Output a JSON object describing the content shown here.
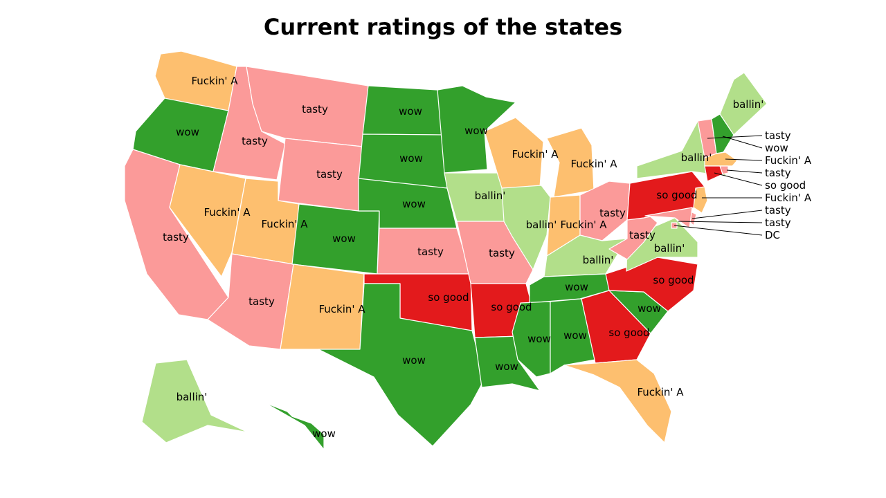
{
  "title": "Current ratings of the states",
  "rating_colors": {
    "so good": "#e31a1c",
    "wow": "#33a02c",
    "ballin'": "#b2df8a",
    "tasty": "#fb9a99",
    "Fuckin' A": "#fdbf6f"
  },
  "states": [
    {
      "id": "WA",
      "rating": "Fuckin' A"
    },
    {
      "id": "OR",
      "rating": "wow"
    },
    {
      "id": "CA",
      "rating": "tasty"
    },
    {
      "id": "ID",
      "rating": "tasty"
    },
    {
      "id": "NV",
      "rating": "Fuckin' A"
    },
    {
      "id": "MT",
      "rating": "tasty"
    },
    {
      "id": "WY",
      "rating": "tasty"
    },
    {
      "id": "UT",
      "rating": "Fuckin' A"
    },
    {
      "id": "AZ",
      "rating": "tasty"
    },
    {
      "id": "CO",
      "rating": "wow"
    },
    {
      "id": "NM",
      "rating": "Fuckin' A"
    },
    {
      "id": "ND",
      "rating": "wow"
    },
    {
      "id": "SD",
      "rating": "wow"
    },
    {
      "id": "NE",
      "rating": "wow"
    },
    {
      "id": "KS",
      "rating": "tasty"
    },
    {
      "id": "OK",
      "rating": "so good"
    },
    {
      "id": "TX",
      "rating": "wow"
    },
    {
      "id": "MN",
      "rating": "wow"
    },
    {
      "id": "IA",
      "rating": "ballin'"
    },
    {
      "id": "MO",
      "rating": "tasty"
    },
    {
      "id": "AR",
      "rating": "so good"
    },
    {
      "id": "LA",
      "rating": "wow"
    },
    {
      "id": "WI",
      "rating": "Fuckin' A"
    },
    {
      "id": "IL",
      "rating": "ballin'"
    },
    {
      "id": "MI",
      "rating": "Fuckin' A"
    },
    {
      "id": "IN",
      "rating": "Fuckin' A"
    },
    {
      "id": "OH",
      "rating": "tasty"
    },
    {
      "id": "KY",
      "rating": "ballin'"
    },
    {
      "id": "TN",
      "rating": "wow"
    },
    {
      "id": "MS",
      "rating": "wow"
    },
    {
      "id": "AL",
      "rating": "wow"
    },
    {
      "id": "GA",
      "rating": "so good"
    },
    {
      "id": "FL",
      "rating": "Fuckin' A"
    },
    {
      "id": "SC",
      "rating": "wow"
    },
    {
      "id": "NC",
      "rating": "so good"
    },
    {
      "id": "VA",
      "rating": "ballin'"
    },
    {
      "id": "WV",
      "rating": "tasty"
    },
    {
      "id": "PA",
      "rating": "so good"
    },
    {
      "id": "NY",
      "rating": "ballin'"
    },
    {
      "id": "ME",
      "rating": "ballin'"
    },
    {
      "id": "AK",
      "rating": "ballin'"
    },
    {
      "id": "HI",
      "rating": "wow"
    },
    {
      "id": "VT",
      "rating": "tasty"
    },
    {
      "id": "NH",
      "rating": "wow"
    },
    {
      "id": "MA",
      "rating": "Fuckin' A"
    },
    {
      "id": "RI",
      "rating": "tasty"
    },
    {
      "id": "CT",
      "rating": "so good"
    },
    {
      "id": "NJ",
      "rating": "Fuckin' A"
    },
    {
      "id": "DE",
      "rating": "tasty"
    },
    {
      "id": "MD",
      "rating": "tasty"
    },
    {
      "id": "DC",
      "rating": "DC"
    }
  ]
}
